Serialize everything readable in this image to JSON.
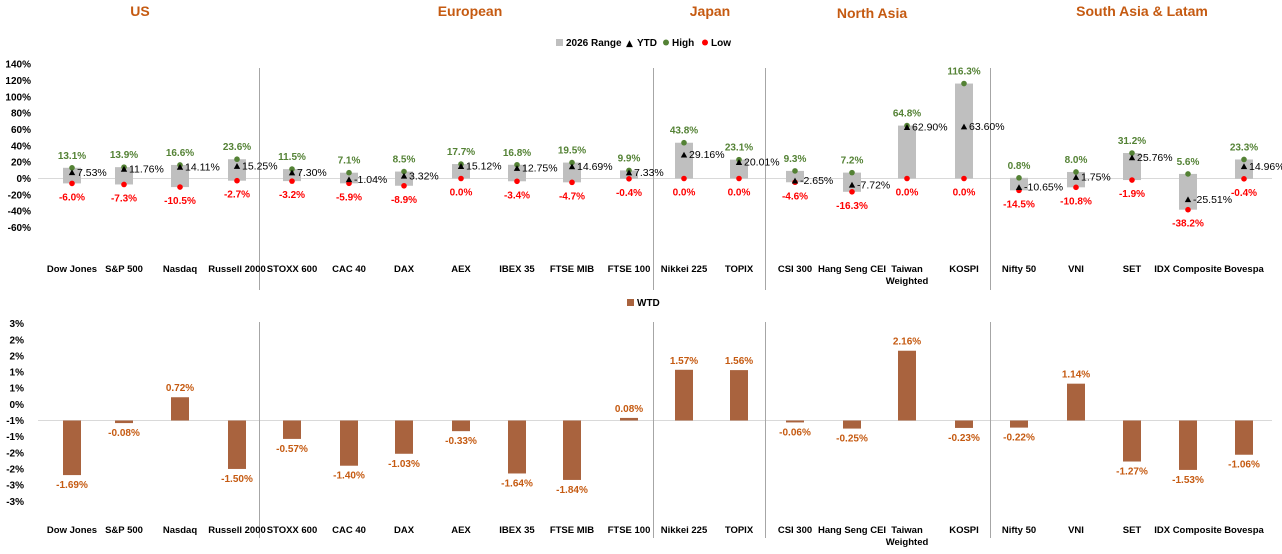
{
  "regions": [
    "US",
    "European",
    "Japan",
    "North Asia",
    "South Asia & Latam"
  ],
  "colors": {
    "range": "#bfbfbf",
    "high": "#548235",
    "low": "#ff0000",
    "ytd": "#000000",
    "wtd": "#a9633e",
    "region": "#c55a11"
  },
  "chart_data": [
    {
      "type": "range",
      "legend": [
        "2026 Range",
        "YTD",
        "High",
        "Low"
      ],
      "ylim": [
        -80,
        140
      ],
      "yticks": [
        "140%",
        "120%",
        "100%",
        "80%",
        "60%",
        "40%",
        "20%",
        "0%",
        "-20%",
        "-40%",
        "-60%"
      ],
      "categories": [
        "Dow Jones",
        "S&P 500",
        "Nasdaq",
        "Russell 2000",
        "STOXX 600",
        "CAC 40",
        "DAX",
        "AEX",
        "IBEX 35",
        "FTSE MIB",
        "FTSE 100",
        "Nikkei 225",
        "TOPIX",
        "CSI 300",
        "Hang Seng CEI",
        "Taiwan Weighted",
        "KOSPI",
        "Nifty 50",
        "VNI",
        "SET",
        "IDX Composite",
        "Bovespa"
      ],
      "high": [
        13.1,
        13.9,
        16.6,
        23.6,
        11.5,
        7.1,
        8.5,
        17.7,
        16.8,
        19.5,
        9.9,
        43.8,
        23.1,
        9.3,
        7.2,
        64.8,
        116.3,
        0.8,
        8.0,
        31.2,
        5.6,
        23.3
      ],
      "low": [
        -6.0,
        -7.3,
        -10.5,
        -2.7,
        -3.2,
        -5.9,
        -8.9,
        0.0,
        -3.4,
        -4.7,
        -0.4,
        0.0,
        0.0,
        -4.6,
        -16.3,
        0.0,
        0.0,
        -14.5,
        -10.8,
        -1.9,
        -38.2,
        -0.4
      ],
      "ytd": [
        7.53,
        11.76,
        14.11,
        15.25,
        7.3,
        -1.04,
        3.32,
        15.12,
        12.75,
        14.69,
        7.33,
        29.16,
        20.01,
        -2.65,
        -7.72,
        62.9,
        63.6,
        -10.65,
        1.75,
        25.76,
        -25.51,
        14.96
      ],
      "high_labels": [
        "13.1%",
        "13.9%",
        "16.6%",
        "23.6%",
        "11.5%",
        "7.1%",
        "8.5%",
        "17.7%",
        "16.8%",
        "19.5%",
        "9.9%",
        "43.8%",
        "23.1%",
        "9.3%",
        "7.2%",
        "64.8%",
        "116.3%",
        "0.8%",
        "8.0%",
        "31.2%",
        "5.6%",
        "23.3%"
      ],
      "low_labels": [
        "-6.0%",
        "-7.3%",
        "-10.5%",
        "-2.7%",
        "-3.2%",
        "-5.9%",
        "-8.9%",
        "0.0%",
        "-3.4%",
        "-4.7%",
        "-0.4%",
        "0.0%",
        "0.0%",
        "-4.6%",
        "-16.3%",
        "0.0%",
        "0.0%",
        "-14.5%",
        "-10.8%",
        "-1.9%",
        "-38.2%",
        "-0.4%"
      ],
      "ytd_labels": [
        "7.53%",
        "11.76%",
        "14.11%",
        "15.25%",
        "7.30%",
        "-1.04%",
        "3.32%",
        "15.12%",
        "12.75%",
        "14.69%",
        "7.33%",
        "29.16%",
        "20.01%",
        "-2.65%",
        "-7.72%",
        "62.90%",
        "63.60%",
        "-10.65%",
        "1.75%",
        "25.76%",
        "-25.51%",
        "14.96%"
      ]
    },
    {
      "type": "bar",
      "legend": [
        "WTD"
      ],
      "ylim": [
        -3,
        3
      ],
      "yticks": [
        "3%",
        "2%",
        "2%",
        "1%",
        "1%",
        "0%",
        "-1%",
        "-1%",
        "-2%",
        "-2%",
        "-3%",
        "-3%"
      ],
      "categories": [
        "Dow Jones",
        "S&P 500",
        "Nasdaq",
        "Russell 2000",
        "STOXX 600",
        "CAC 40",
        "DAX",
        "AEX",
        "IBEX 35",
        "FTSE MIB",
        "FTSE 100",
        "Nikkei 225",
        "TOPIX",
        "CSI 300",
        "Hang Seng CEI",
        "Taiwan Weighted",
        "KOSPI",
        "Nifty 50",
        "VNI",
        "SET",
        "IDX Composite",
        "Bovespa"
      ],
      "values": [
        -1.69,
        -0.08,
        0.72,
        -1.5,
        -0.57,
        -1.4,
        -1.03,
        -0.33,
        -1.64,
        -1.84,
        0.08,
        1.57,
        1.56,
        -0.06,
        -0.25,
        2.16,
        -0.23,
        -0.22,
        1.14,
        -1.27,
        -1.53,
        -1.06
      ],
      "value_labels": [
        "-1.69%",
        "-0.08%",
        "0.72%",
        "-1.50%",
        "-0.57%",
        "-1.40%",
        "-1.03%",
        "-0.33%",
        "-1.64%",
        "-1.84%",
        "0.08%",
        "1.57%",
        "1.56%",
        "-0.06%",
        "-0.25%",
        "2.16%",
        "-0.23%",
        "-0.22%",
        "1.14%",
        "-1.27%",
        "-1.53%",
        "-1.06%"
      ]
    }
  ]
}
